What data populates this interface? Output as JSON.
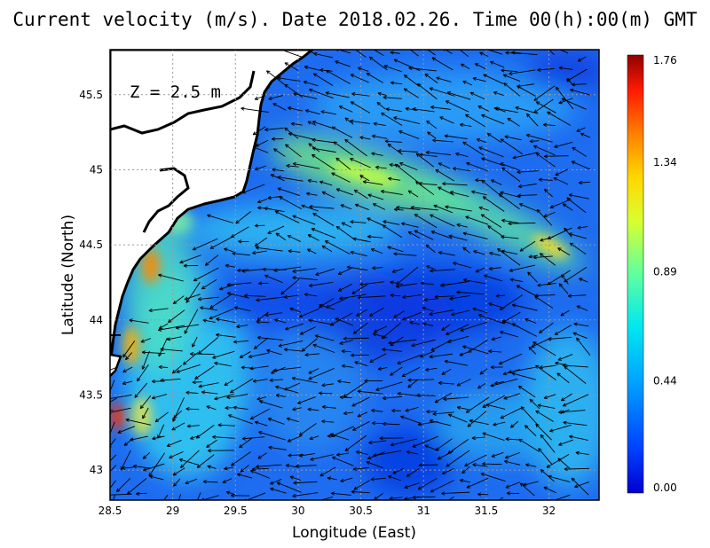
{
  "title": "Current velocity (m/s). Date 2018.02.26. Time 00(h):00(m) GMT",
  "depth_label": "Z = 2.5 m",
  "x_axis": {
    "label": "Longitude (East)",
    "range": [
      28.5,
      32.4
    ],
    "ticks": [
      {
        "value": 28.5,
        "label": "28.5"
      },
      {
        "value": 29,
        "label": "29"
      },
      {
        "value": 29.5,
        "label": "29.5"
      },
      {
        "value": 30,
        "label": "30"
      },
      {
        "value": 30.5,
        "label": "30.5"
      },
      {
        "value": 31,
        "label": "31"
      },
      {
        "value": 31.5,
        "label": "31.5"
      },
      {
        "value": 32,
        "label": "32"
      }
    ]
  },
  "y_axis": {
    "label": "Latitude (North)",
    "range": [
      42.8,
      45.8
    ],
    "ticks": [
      {
        "value": 43,
        "label": "43"
      },
      {
        "value": 43.5,
        "label": "43.5"
      },
      {
        "value": 44,
        "label": "44"
      },
      {
        "value": 44.5,
        "label": "44.5"
      },
      {
        "value": 45,
        "label": "45"
      },
      {
        "value": 45.5,
        "label": "45.5"
      }
    ]
  },
  "colorbar": {
    "min": 0.0,
    "max": 1.76,
    "labels": [
      "0.00",
      "0.44",
      "0.89",
      "1.34",
      "1.76"
    ],
    "values": [
      0.0,
      0.44,
      0.89,
      1.34,
      1.76
    ],
    "colormap": [
      "#0000c8",
      "#0046ff",
      "#00a0ff",
      "#00e6f0",
      "#50ffb0",
      "#c8ff40",
      "#ffe600",
      "#ff8c00",
      "#ff1e00",
      "#a00000"
    ]
  },
  "colors": {
    "land": "#ffffff",
    "coastline": "#000000",
    "grid": "#9a9a9a",
    "arrow": "#000000"
  },
  "grid": true
}
